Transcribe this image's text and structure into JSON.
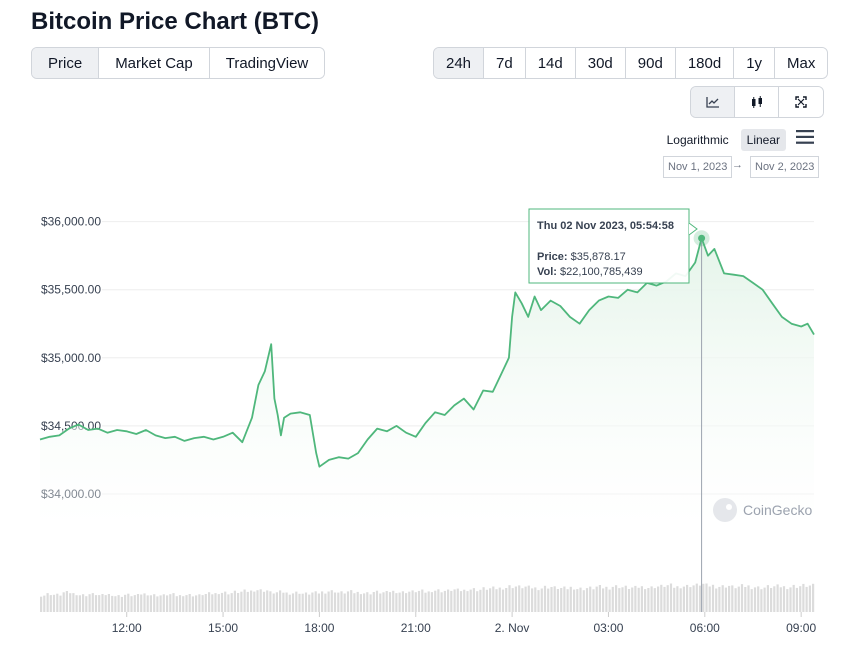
{
  "title": "Bitcoin Price Chart (BTC)",
  "tabs": [
    "Price",
    "Market Cap",
    "TradingView"
  ],
  "active_tab": 0,
  "ranges": [
    "24h",
    "7d",
    "14d",
    "30d",
    "90d",
    "180d",
    "1y",
    "Max"
  ],
  "active_range": 0,
  "chart_types": [
    "line-chart-icon",
    "candlestick-icon",
    "expand-icon"
  ],
  "active_chart_type": 0,
  "scales": [
    "Logarithmic",
    "Linear"
  ],
  "active_scale": "Linear",
  "date_from": "Nov 1, 2023",
  "date_to": "Nov 2, 2023",
  "date_arrow": "→",
  "watermark": "CoinGecko",
  "colors": {
    "line": "#4fb77c",
    "fill": "#e4f4e9",
    "volume": "#dcdcdc",
    "grid": "#eeeeee"
  },
  "tooltip": {
    "datetime": "Thu 02 Nov 2023, 05:54:58",
    "price_label": "Price:",
    "price_value": "$35,878.17",
    "vol_label": "Vol:",
    "vol_value": "$22,100,785,439"
  },
  "chart_data": {
    "type": "area",
    "y_ticks": [
      "$36,000.00",
      "$35,500.00",
      "$35,000.00",
      "$34,500.00",
      "$34,000.00"
    ],
    "y_tick_values": [
      36000,
      35500,
      35000,
      34500,
      34000
    ],
    "x_ticks": [
      "12:00",
      "15:00",
      "18:00",
      "21:00",
      "2. Nov",
      "03:00",
      "06:00",
      "09:00"
    ],
    "x_tick_hours": [
      12,
      15,
      18,
      21,
      24,
      27,
      30,
      33
    ],
    "xlim_hours": [
      9.3,
      33.4
    ],
    "ylim": [
      33750,
      36100
    ],
    "series": [
      {
        "x": [
          9.3,
          9.6,
          9.9,
          10.2,
          10.5,
          10.8,
          11.1,
          11.4,
          11.7,
          12,
          12.3,
          12.6,
          12.9,
          13.2,
          13.5,
          13.8,
          14.1,
          14.4,
          14.7,
          15,
          15.3,
          15.6,
          15.9,
          16.1,
          16.3,
          16.5,
          16.6,
          16.7,
          16.8,
          16.9,
          17.1,
          17.4,
          17.7,
          17.9,
          18,
          18.3,
          18.6,
          18.9,
          19.2,
          19.5,
          19.8,
          20.1,
          20.4,
          20.7,
          21,
          21.3,
          21.6,
          21.9,
          22.2,
          22.5,
          22.8,
          23.1,
          23.4,
          23.7,
          23.9,
          24,
          24.1,
          24.3,
          24.5,
          24.7,
          24.9,
          25.2,
          25.5,
          25.8,
          26.1,
          26.4,
          26.7,
          27,
          27.3,
          27.6,
          27.9,
          28.2,
          28.5,
          28.8,
          29.1,
          29.4,
          29.7,
          29.9,
          30.1,
          30.3,
          30.6,
          30.9,
          31.2,
          31.5,
          31.8,
          32.1,
          32.4,
          32.7,
          33,
          33.2,
          33.4
        ],
        "price": [
          34400,
          34420,
          34430,
          34480,
          34510,
          34470,
          34480,
          34450,
          34470,
          34460,
          34440,
          34470,
          34430,
          34410,
          34420,
          34390,
          34410,
          34420,
          34400,
          34420,
          34450,
          34380,
          34560,
          34800,
          34900,
          35100,
          34700,
          34580,
          34430,
          34560,
          34590,
          34600,
          34580,
          34300,
          34200,
          34250,
          34270,
          34260,
          34300,
          34400,
          34480,
          34460,
          34500,
          34450,
          34420,
          34520,
          34600,
          34580,
          34650,
          34700,
          34620,
          34760,
          34750,
          34900,
          35000,
          35300,
          35480,
          35400,
          35300,
          35450,
          35350,
          35420,
          35380,
          35300,
          35250,
          35350,
          35420,
          35450,
          35440,
          35500,
          35480,
          35550,
          35530,
          35560,
          35620,
          35600,
          35700,
          35878,
          35750,
          35800,
          35620,
          35610,
          35600,
          35550,
          35500,
          35400,
          35300,
          35250,
          35230,
          35250,
          35170
        ],
        "volume_relative": [
          0.6,
          0.65,
          0.62,
          0.7,
          0.66,
          0.61,
          0.64,
          0.6,
          0.63,
          0.58,
          0.62,
          0.6,
          0.65,
          0.61,
          0.6,
          0.63,
          0.59,
          0.62,
          0.6,
          0.64,
          0.66,
          0.7,
          0.68,
          0.72,
          0.75,
          0.8,
          0.78,
          0.7,
          0.72,
          0.68,
          0.7,
          0.66,
          0.69,
          0.72,
          0.75,
          0.7,
          0.73,
          0.7,
          0.68,
          0.72,
          0.7,
          0.74,
          0.71,
          0.73,
          0.75,
          0.72,
          0.78,
          0.76,
          0.8,
          0.78,
          0.82,
          0.8,
          0.84,
          0.85,
          0.88,
          0.92,
          0.9,
          0.88,
          0.86,
          0.9,
          0.87,
          0.85,
          0.88,
          0.84,
          0.86,
          0.9,
          0.88,
          0.92,
          0.89,
          0.87,
          0.9,
          0.88,
          0.92,
          0.95,
          0.9,
          0.93,
          0.96,
          1.0,
          0.95,
          0.92,
          0.94,
          0.9,
          0.93,
          0.9,
          0.88,
          0.91,
          0.92,
          0.9,
          0.93,
          0.95,
          0.94
        ]
      }
    ],
    "highlight_index": 77
  }
}
